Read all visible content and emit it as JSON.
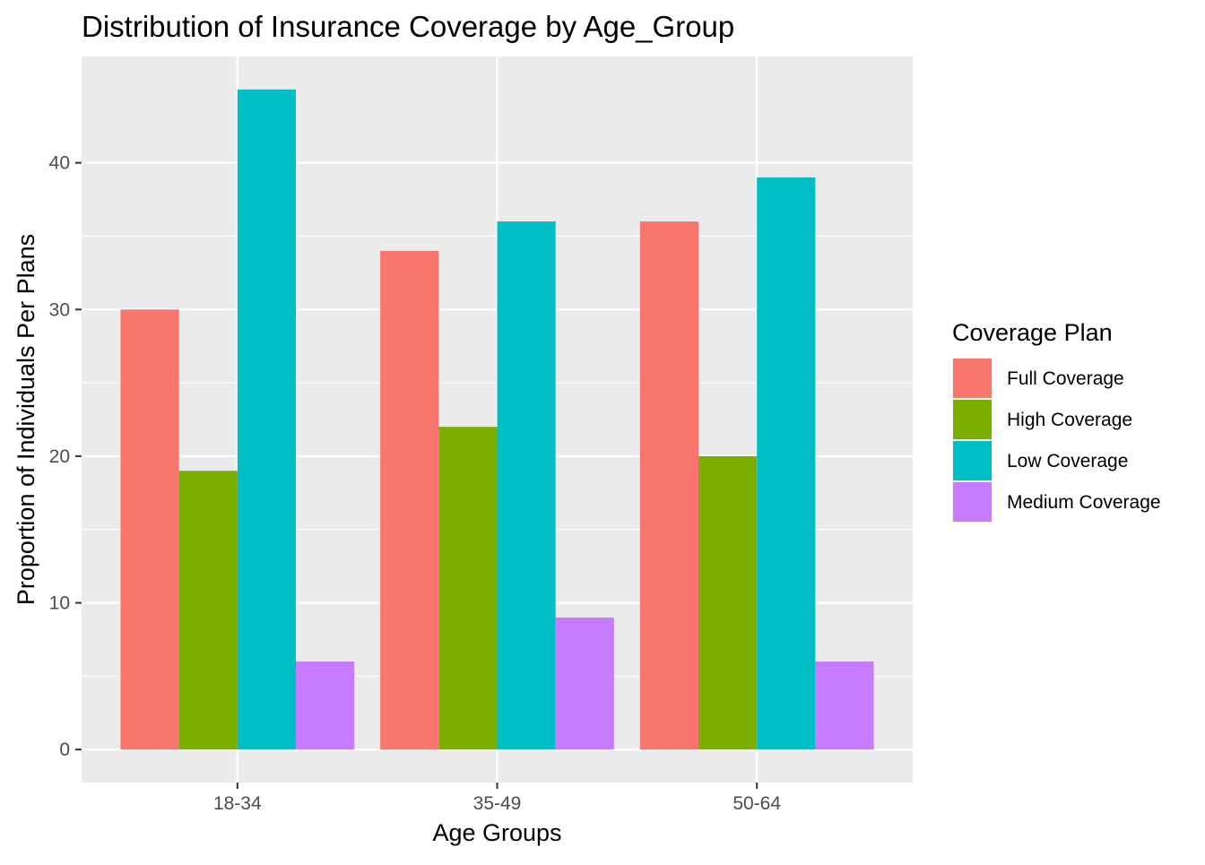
{
  "chart_data": {
    "type": "bar",
    "title": "Distribution of Insurance Coverage by Age_Group",
    "xlabel": "Age Groups",
    "ylabel": "Proportion of Individuals Per Plans",
    "categories": [
      "18-34",
      "35-49",
      "50-64"
    ],
    "series": [
      {
        "name": "Full Coverage",
        "values": [
          30,
          34,
          36
        ],
        "color": "#F8766D"
      },
      {
        "name": "High Coverage",
        "values": [
          19,
          22,
          20
        ],
        "color": "#7CAE00"
      },
      {
        "name": "Low Coverage",
        "values": [
          45,
          36,
          39
        ],
        "color": "#00BFC4"
      },
      {
        "name": "Medium Coverage",
        "values": [
          6,
          9,
          6
        ],
        "color": "#C77CFF"
      }
    ],
    "ylim": [
      -2.25,
      47.25
    ],
    "yticks": [
      0,
      10,
      20,
      30,
      40
    ],
    "legend": {
      "title": "Coverage Plan",
      "position": "right"
    },
    "grid": true,
    "panel_background": "#EBEBEB"
  }
}
